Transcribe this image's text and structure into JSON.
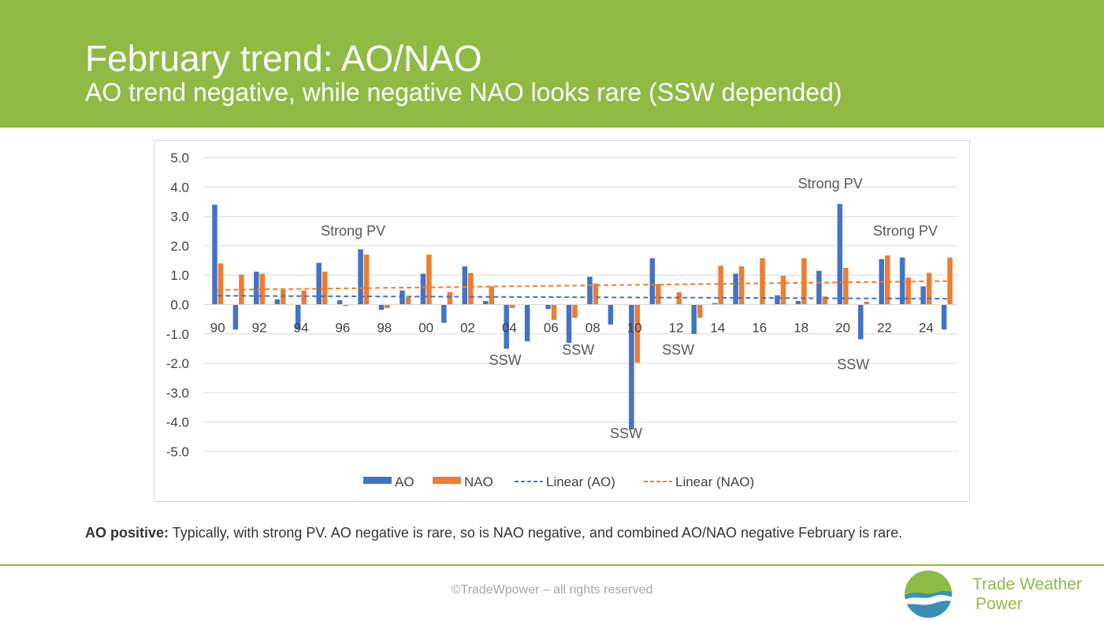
{
  "header": {
    "title": "February trend: AO/NAO",
    "subtitle": "AO trend negative, while negative NAO looks rare (SSW depended)"
  },
  "chart_data": {
    "type": "bar",
    "categories": [
      "90",
      "91",
      "92",
      "93",
      "94",
      "95",
      "96",
      "97",
      "98",
      "99",
      "00",
      "01",
      "02",
      "03",
      "04",
      "05",
      "06",
      "07",
      "08",
      "09",
      "10",
      "11",
      "12",
      "13",
      "14",
      "15",
      "16",
      "17",
      "18",
      "19",
      "20",
      "21",
      "22",
      "23",
      "24",
      "25"
    ],
    "x_tick_labels": [
      "90",
      "",
      "92",
      "",
      "94",
      "",
      "96",
      "",
      "98",
      "",
      "00",
      "",
      "02",
      "",
      "04",
      "",
      "06",
      "",
      "08",
      "",
      "10",
      "",
      "12",
      "",
      "14",
      "",
      "16",
      "",
      "18",
      "",
      "20",
      "",
      "22",
      "",
      "24",
      ""
    ],
    "series": [
      {
        "name": "AO",
        "color": "#4472c4",
        "values": [
          3.4,
          -0.85,
          1.12,
          0.18,
          -0.85,
          1.42,
          0.15,
          1.88,
          -0.18,
          0.48,
          1.05,
          -0.62,
          1.3,
          0.12,
          -1.5,
          -1.25,
          -0.15,
          -1.3,
          0.95,
          -0.68,
          -4.25,
          1.58,
          0.0,
          -1.0,
          0.05,
          1.05,
          0.0,
          0.32,
          0.12,
          1.15,
          3.42,
          -1.18,
          1.55,
          1.6,
          0.62,
          -0.85
        ]
      },
      {
        "name": "NAO",
        "color": "#ed7d31",
        "values": [
          1.4,
          1.02,
          1.05,
          0.5,
          0.48,
          1.12,
          -0.05,
          1.7,
          -0.12,
          0.25,
          1.7,
          0.43,
          1.08,
          0.62,
          -0.12,
          0.0,
          -0.52,
          -0.45,
          0.72,
          0.0,
          -1.98,
          0.7,
          0.42,
          -0.45,
          1.32,
          1.3,
          1.58,
          0.98,
          1.58,
          0.28,
          1.25,
          0.1,
          1.67,
          0.92,
          1.08,
          1.6
        ]
      }
    ],
    "trendlines": [
      {
        "name": "Linear (AO)",
        "color": "#4472c4",
        "start": 0.3,
        "end": 0.2
      },
      {
        "name": "Linear (NAO)",
        "color": "#ed7d31",
        "start": 0.5,
        "end": 0.8
      }
    ],
    "y_ticks": [
      "5.0",
      "4.0",
      "3.0",
      "2.0",
      "1.0",
      "0.0",
      "-1.0",
      "-2.0",
      "-3.0",
      "-4.0",
      "-5.0"
    ],
    "ylim": [
      -5,
      5
    ],
    "grid": true,
    "legend": "bottom",
    "annotations": [
      {
        "text": "Strong PV",
        "x": 7.0,
        "y": 2.35
      },
      {
        "text": "Strong PV",
        "x": 29.9,
        "y": 3.95
      },
      {
        "text": "Strong PV",
        "x": 33.5,
        "y": 2.35
      },
      {
        "text": "SSW",
        "x": 14.3,
        "y": -2.05
      },
      {
        "text": "SSW",
        "x": 17.8,
        "y": -1.7
      },
      {
        "text": "SSW",
        "x": 20.1,
        "y": -4.55
      },
      {
        "text": "SSW",
        "x": 22.6,
        "y": -1.7
      },
      {
        "text": "SSW",
        "x": 31.0,
        "y": -2.2
      }
    ]
  },
  "note": {
    "bold": "AO positive:",
    "text": " Typically, with strong PV. AO negative is rare, so is NAO negative, and combined AO/NAO negative February is rare."
  },
  "footer": {
    "copyright": "©TradeWpower – all rights reserved"
  },
  "brand": {
    "line1": "Trade Weather",
    "line2": "Power"
  }
}
